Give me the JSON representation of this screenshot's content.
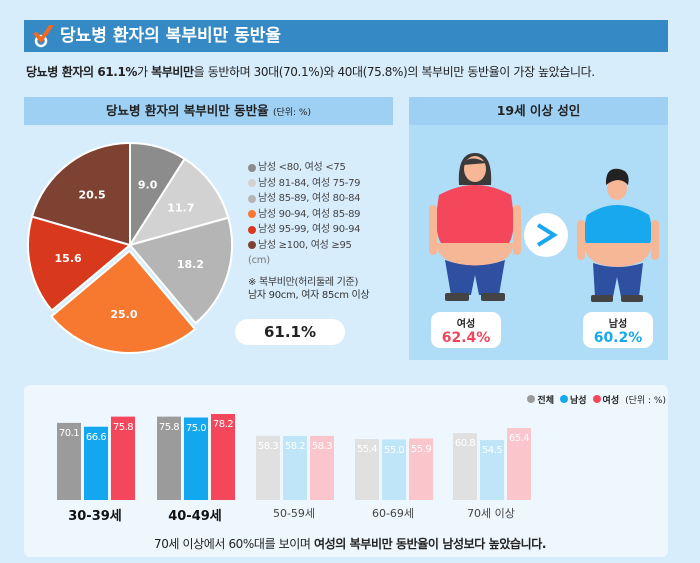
{
  "title": "당뇨병 환자의 복부비만 동반율",
  "summary": {
    "bold1": "당뇨병 환자의 61.1%",
    "t1": "가 ",
    "bold2": "복부비만",
    "t2": "을 동반하며 30대(70.1%)와 40대(75.8%)의 복부비만 동반율이 가장 높았습니다."
  },
  "left_panel": {
    "header": "당뇨병 환자의 복부비만 동반율",
    "unit": "(단위: %)",
    "total_label": "61.1%",
    "unit_cm": "(cm)",
    "note_line1": "※ 복부비만(허리둘레 기준)",
    "note_line2": "남자 90cm, 여자 85cm 이상"
  },
  "right_panel": {
    "header": "19세 이상 성인",
    "comparison_icon": "greater-than",
    "female": {
      "label": "여성",
      "value": "62.4%",
      "color": "#f0475c"
    },
    "male": {
      "label": "남성",
      "value": "60.2%",
      "color": "#18a8ee"
    }
  },
  "chart_data": [
    {
      "type": "pie",
      "title": "당뇨병 환자의 복부비만 동반율",
      "unit": "%",
      "slices": [
        {
          "label": "남성 <80, 여성 <75",
          "value": 9.0,
          "color": "#8c8c8c"
        },
        {
          "label": "남성 81-84, 여성 75-79",
          "value": 11.7,
          "color": "#d2d2d2"
        },
        {
          "label": "남성 85-89, 여성 80-84",
          "value": 18.2,
          "color": "#b5b5b5"
        },
        {
          "label": "남성 90-94, 여성 85-89",
          "value": 25.0,
          "color": "#f7782f"
        },
        {
          "label": "남성 95-99, 여성 90-94",
          "value": 15.6,
          "color": "#d8391c"
        },
        {
          "label": "남성 ≥100, 여성 ≥95",
          "value": 20.5,
          "color": "#7e4233"
        }
      ]
    },
    {
      "type": "bar",
      "unit": "(단위 : %)",
      "categories": [
        "30-39세",
        "40-49세",
        "50-59세",
        "60-69세",
        "70세 이상"
      ],
      "highlighted": [
        "30-39세",
        "40-49세"
      ],
      "series": [
        {
          "name": "전체",
          "values": [
            70.1,
            75.8,
            58.3,
            55.4,
            60.8
          ],
          "color": "#9b9b9b",
          "faded": "#e0e0e0"
        },
        {
          "name": "남성",
          "values": [
            66.6,
            75.0,
            58.2,
            55.0,
            54.5
          ],
          "color": "#12a7ee",
          "faded": "#bfe5f8"
        },
        {
          "name": "여성",
          "values": [
            75.8,
            78.2,
            58.3,
            55.9,
            65.4
          ],
          "color": "#f5475c",
          "faded": "#fbc5cc"
        }
      ]
    }
  ],
  "bottom_note": {
    "t1": "70세 이상에서 60%대를 보이며 ",
    "bold": "여성의 복부비만 동반율이  남성보다 높았습니다."
  }
}
